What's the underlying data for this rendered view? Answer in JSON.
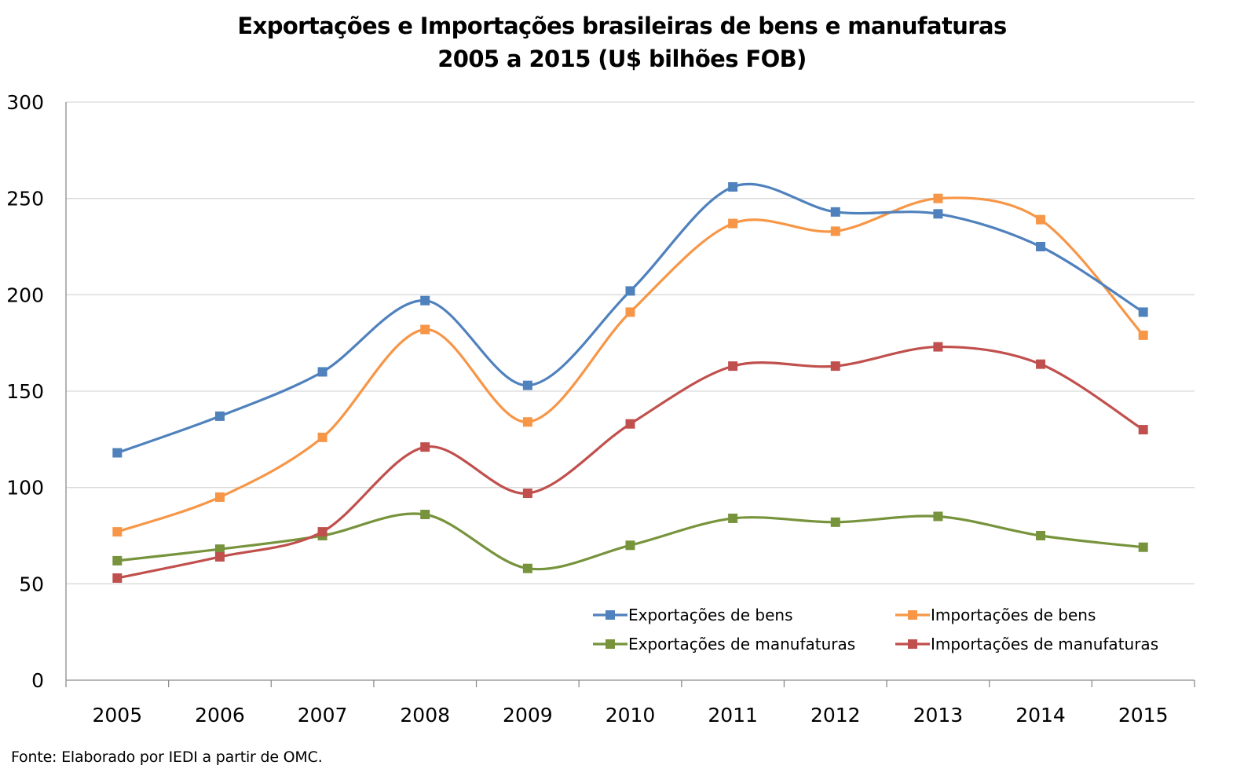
{
  "chart_data": {
    "type": "line",
    "title_line1": "Exportações e Importações brasileiras de bens e manufaturas",
    "title_line2": "2005 a 2015 (U$ bilhões FOB)",
    "xlabel": "",
    "ylabel": "",
    "ylim": [
      0,
      300
    ],
    "yticks": [
      "0",
      "50",
      "100",
      "150",
      "200",
      "250",
      "300"
    ],
    "categories": [
      "2005",
      "2006",
      "2007",
      "2008",
      "2009",
      "2010",
      "2011",
      "2012",
      "2013",
      "2014",
      "2015"
    ],
    "grid": "horizontal",
    "legend_position": "bottom-right, inside plot",
    "smooth": true,
    "marker": "square",
    "series": [
      {
        "name": "Exportações de bens",
        "color": "#4F81BD",
        "values": [
          118,
          137,
          160,
          197,
          153,
          202,
          256,
          243,
          242,
          225,
          191
        ]
      },
      {
        "name": "Importações de bens",
        "color": "#F79646",
        "values": [
          77,
          95,
          126,
          182,
          134,
          191,
          237,
          233,
          250,
          239,
          179
        ]
      },
      {
        "name": "Exportações de manufaturas",
        "color": "#77933C",
        "values": [
          62,
          68,
          75,
          86,
          58,
          70,
          84,
          82,
          85,
          75,
          69
        ]
      },
      {
        "name": "Importações de manufaturas",
        "color": "#C0504D",
        "values": [
          53,
          64,
          77,
          121,
          97,
          133,
          163,
          163,
          173,
          164,
          130
        ]
      }
    ]
  },
  "source": "Fonte: Elaborado por IEDI a partir de OMC."
}
